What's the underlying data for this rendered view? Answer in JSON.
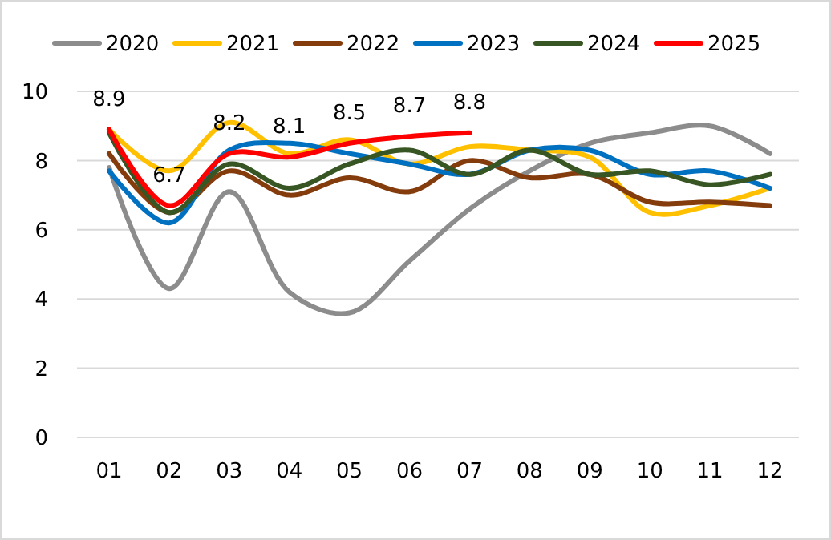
{
  "chart_data": {
    "type": "line",
    "categories": [
      "01",
      "02",
      "03",
      "04",
      "05",
      "06",
      "07",
      "08",
      "09",
      "10",
      "11",
      "12"
    ],
    "series": [
      {
        "name": "2020",
        "color": "#8c8c8c",
        "values": [
          7.8,
          4.3,
          7.1,
          4.2,
          3.6,
          5.1,
          6.6,
          7.7,
          8.5,
          8.8,
          9.0,
          8.2
        ]
      },
      {
        "name": "2021",
        "color": "#ffc000",
        "values": [
          8.9,
          7.7,
          9.1,
          8.2,
          8.6,
          7.9,
          8.4,
          8.3,
          8.1,
          6.5,
          6.7,
          7.2
        ]
      },
      {
        "name": "2022",
        "color": "#843c0c",
        "values": [
          8.2,
          6.5,
          7.7,
          7.0,
          7.5,
          7.1,
          8.0,
          7.5,
          7.6,
          6.8,
          6.8,
          6.7
        ]
      },
      {
        "name": "2023",
        "color": "#0070c0",
        "values": [
          7.7,
          6.2,
          8.3,
          8.5,
          8.2,
          7.9,
          7.6,
          8.3,
          8.3,
          7.6,
          7.7,
          7.2
        ]
      },
      {
        "name": "2024",
        "color": "#375623",
        "values": [
          8.8,
          6.5,
          7.9,
          7.2,
          7.9,
          8.3,
          7.6,
          8.3,
          7.6,
          7.7,
          7.3,
          7.6
        ]
      },
      {
        "name": "2025",
        "color": "#ff0000",
        "values": [
          8.9,
          6.7,
          8.2,
          8.1,
          8.5,
          8.7,
          8.8,
          null,
          null,
          null,
          null,
          null
        ],
        "value_labels": [
          "8.9",
          "6.7",
          "8.2",
          "8.1",
          "8.5",
          "8.7",
          "8.8",
          null,
          null,
          null,
          null,
          null
        ]
      }
    ],
    "ylim": [
      0,
      10
    ],
    "yticks": [
      0,
      2,
      4,
      6,
      8,
      10
    ],
    "grid": "y",
    "legend": "top",
    "marker": "none",
    "line_style": "solid"
  }
}
